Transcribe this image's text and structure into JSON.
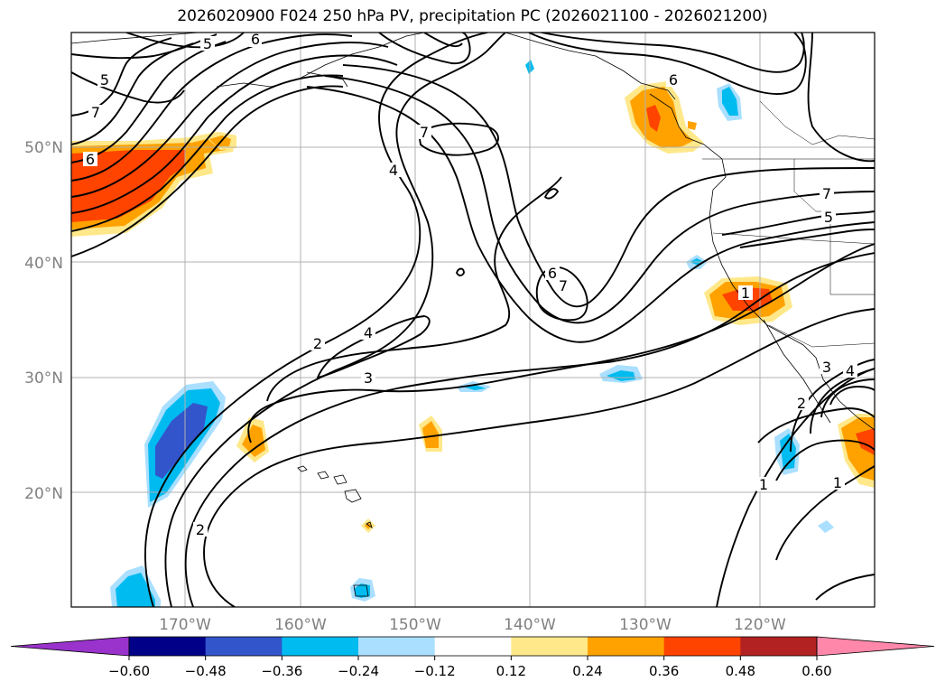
{
  "title": "2026020900 F024 250 hPa PV, precipitation PC (2026021100 - 2026021200)",
  "lat_labels": [
    "50°N",
    "40°N",
    "30°N",
    "20°N"
  ],
  "lon_labels": [
    "170°W",
    "160°W",
    "150°W",
    "140°W",
    "130°W",
    "120°W"
  ],
  "contour_labels": [
    "5",
    "6",
    "5",
    "7",
    "7",
    "4",
    "6",
    "2",
    "4",
    "3",
    "2",
    "6",
    "7",
    "6",
    "1",
    "7",
    "5",
    "2",
    "3",
    "4",
    "1",
    "1"
  ],
  "colorbar": {
    "ticks": [
      "−0.60",
      "−0.48",
      "−0.36",
      "−0.24",
      "−0.12",
      "0.12",
      "0.24",
      "0.36",
      "0.48",
      "0.60"
    ],
    "colors": [
      "#9933cc",
      "#000088",
      "#3355cc",
      "#00bbf0",
      "#aadfff",
      "#ffffff",
      "#ffe88a",
      "#ffa200",
      "#ff4400",
      "#b22222",
      "#ff88aa"
    ]
  },
  "colors": {
    "contour": "#000000",
    "coast": "#000000",
    "grid": "#b0b0b0",
    "axis_label": "#808080"
  }
}
